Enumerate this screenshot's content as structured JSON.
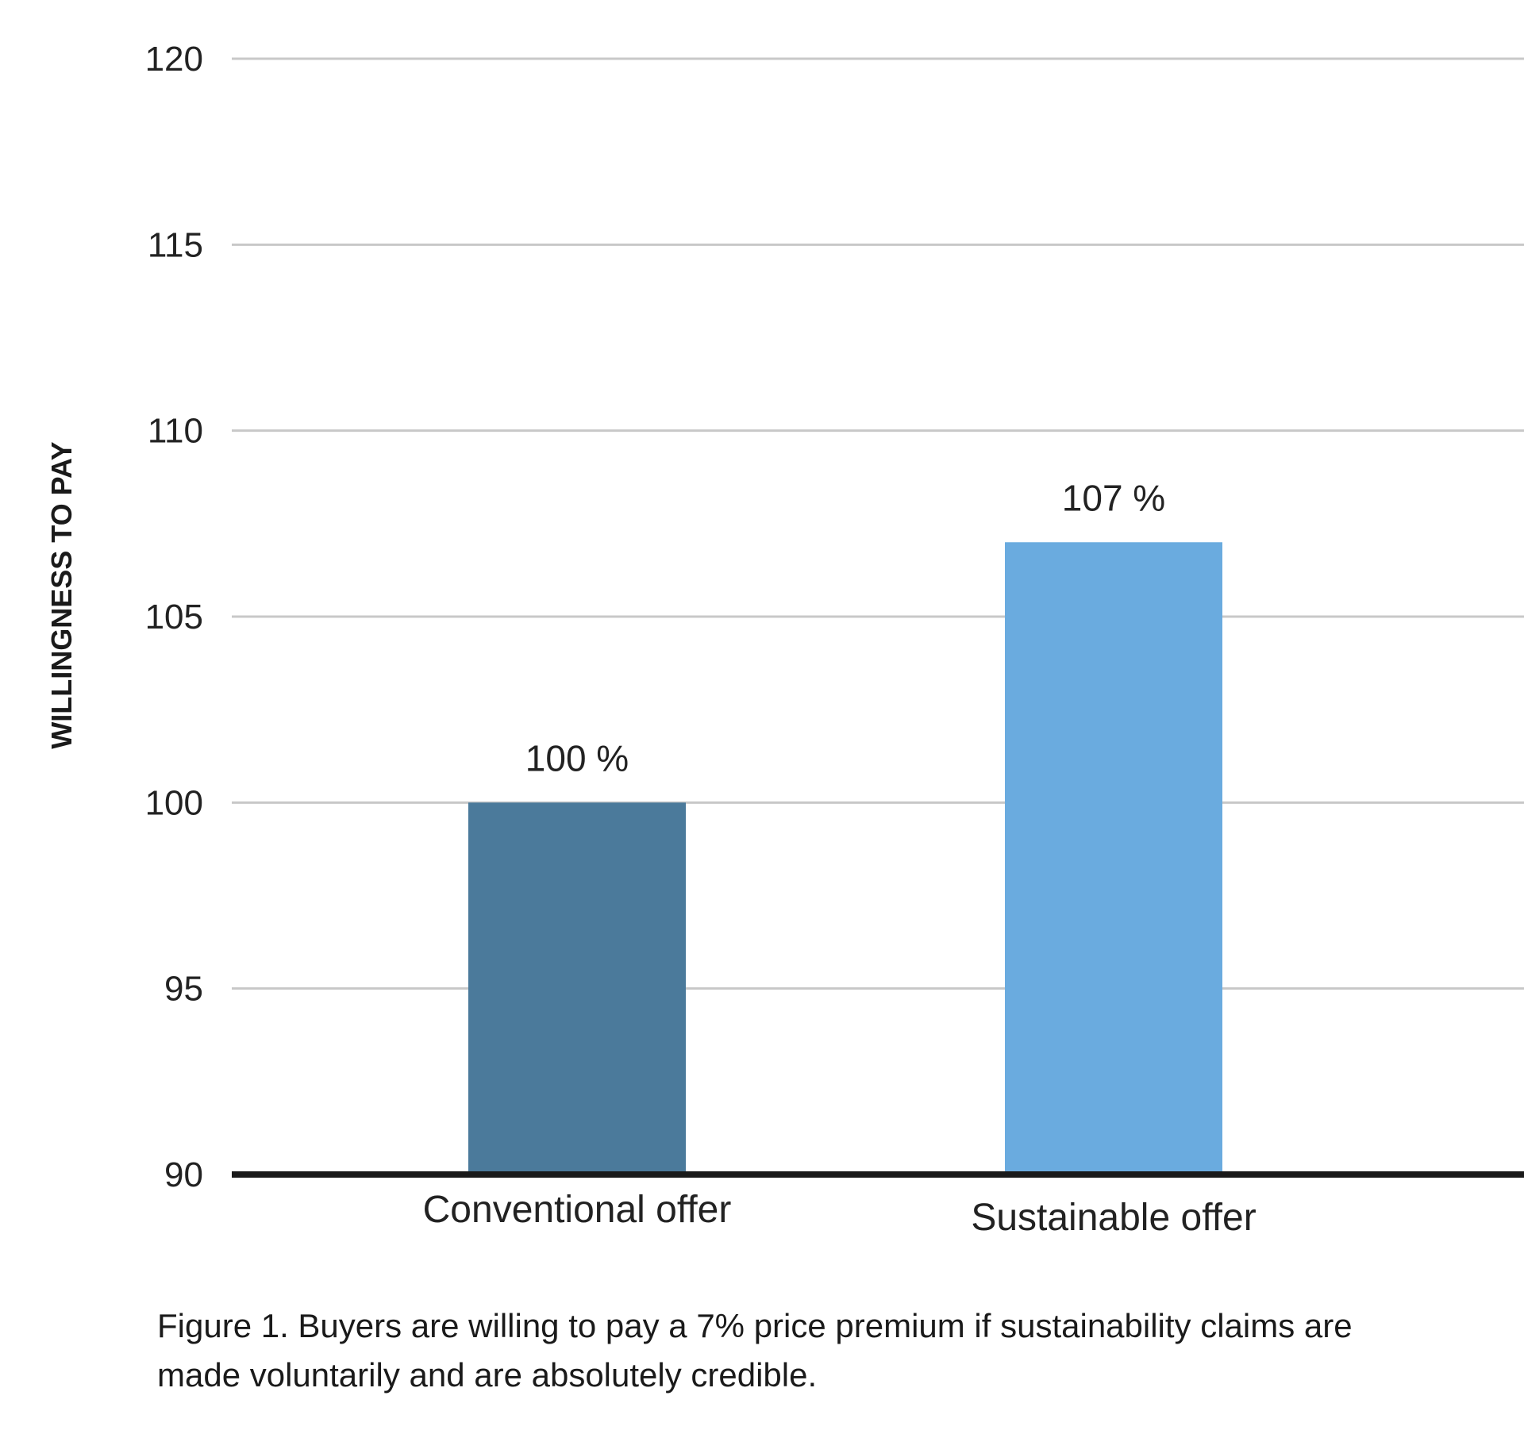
{
  "caption": "Figure 1. Buyers are willing to pay a 7% price premium if sustainability claims are made voluntarily and are absolutely credible.",
  "chart_data": {
    "type": "bar",
    "title": "",
    "xlabel": "",
    "ylabel": "WILLINGNESS TO PAY",
    "categories": [
      "Conventional offer",
      "Sustainable offer"
    ],
    "values": [
      100,
      107
    ],
    "data_labels": [
      "100 %",
      "107 %"
    ],
    "bar_colors": [
      "#4b7a9b",
      "#6aabdf"
    ],
    "ylim": [
      90,
      120
    ],
    "yticks": [
      90,
      95,
      100,
      105,
      110,
      115,
      120
    ],
    "ytick_labels": [
      "90",
      "95",
      "100",
      "105",
      "110",
      "115",
      "120"
    ],
    "grid": true,
    "grid_color": "#c8c8c8",
    "baseline_color": "#1a1a1a",
    "legend": "none"
  }
}
